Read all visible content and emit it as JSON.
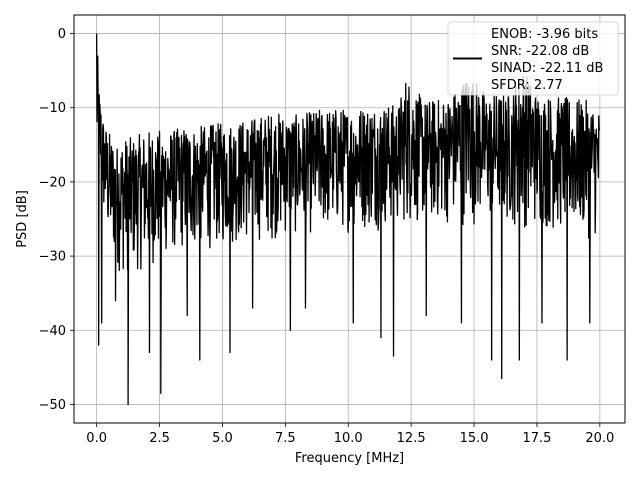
{
  "chart_data": {
    "type": "line",
    "title": "",
    "xlabel": "Frequency [MHz]",
    "ylabel": "PSD [dB]",
    "xlim": [
      -0.9,
      21.0
    ],
    "ylim": [
      -52.5,
      2.5
    ],
    "xticks": [
      0.0,
      2.5,
      5.0,
      7.5,
      10.0,
      12.5,
      15.0,
      17.5,
      20.0
    ],
    "xtick_labels": [
      "0.0",
      "2.5",
      "5.0",
      "7.5",
      "10.0",
      "12.5",
      "15.0",
      "17.5",
      "20.0"
    ],
    "yticks": [
      0,
      -10,
      -20,
      -30,
      -40,
      -50
    ],
    "ytick_labels": [
      "0",
      "−10",
      "−20",
      "−30",
      "−40",
      "−50"
    ],
    "grid": true,
    "legend_position": "top-right",
    "series": [
      {
        "name": "ENOB: -3.96 bits\nSNR: -22.08 dB\nSINAD: -22.11 dB\nSFDR: 2.77",
        "color": "#000000",
        "x_range": [
          0.0,
          20.0
        ],
        "peak": {
          "x": 0.0,
          "y": 0.0
        },
        "envelope_upper": [
          {
            "x": 0.0,
            "y": 0.0
          },
          {
            "x": 0.1,
            "y": -7
          },
          {
            "x": 0.3,
            "y": -12
          },
          {
            "x": 0.8,
            "y": -15
          },
          {
            "x": 1.0,
            "y": -14
          },
          {
            "x": 1.5,
            "y": -14
          },
          {
            "x": 2.0,
            "y": -13
          },
          {
            "x": 2.5,
            "y": -13
          },
          {
            "x": 3.0,
            "y": -13
          },
          {
            "x": 3.5,
            "y": -12.5
          },
          {
            "x": 4.0,
            "y": -12.5
          },
          {
            "x": 5.0,
            "y": -12
          },
          {
            "x": 6.0,
            "y": -11.5
          },
          {
            "x": 7.0,
            "y": -10.5
          },
          {
            "x": 8.0,
            "y": -11
          },
          {
            "x": 9.0,
            "y": -10
          },
          {
            "x": 10.0,
            "y": -10
          },
          {
            "x": 11.0,
            "y": -9.5
          },
          {
            "x": 12.0,
            "y": -9.5
          },
          {
            "x": 12.3,
            "y": -5.5
          },
          {
            "x": 13.0,
            "y": -9
          },
          {
            "x": 14.0,
            "y": -8.5
          },
          {
            "x": 14.8,
            "y": -5
          },
          {
            "x": 15.5,
            "y": -8
          },
          {
            "x": 16.5,
            "y": -8
          },
          {
            "x": 16.9,
            "y": -4
          },
          {
            "x": 17.5,
            "y": -8
          },
          {
            "x": 18.5,
            "y": -8.5
          },
          {
            "x": 19.5,
            "y": -9
          },
          {
            "x": 20.0,
            "y": -10
          }
        ],
        "envelope_lower": [
          {
            "x": 0.0,
            "y": -20
          },
          {
            "x": 0.5,
            "y": -30
          },
          {
            "x": 1.0,
            "y": -33
          },
          {
            "x": 2.0,
            "y": -32
          },
          {
            "x": 3.0,
            "y": -30
          },
          {
            "x": 5.0,
            "y": -29
          },
          {
            "x": 7.0,
            "y": -28
          },
          {
            "x": 10.0,
            "y": -27
          },
          {
            "x": 13.0,
            "y": -26
          },
          {
            "x": 16.0,
            "y": -26
          },
          {
            "x": 18.0,
            "y": -27
          },
          {
            "x": 20.0,
            "y": -28
          }
        ],
        "deep_dips": [
          {
            "x": 0.08,
            "y": -42
          },
          {
            "x": 0.2,
            "y": -39
          },
          {
            "x": 0.75,
            "y": -36
          },
          {
            "x": 1.25,
            "y": -50
          },
          {
            "x": 2.1,
            "y": -43
          },
          {
            "x": 2.55,
            "y": -48.5
          },
          {
            "x": 3.6,
            "y": -38
          },
          {
            "x": 4.1,
            "y": -44
          },
          {
            "x": 5.3,
            "y": -43
          },
          {
            "x": 6.2,
            "y": -37
          },
          {
            "x": 7.7,
            "y": -40
          },
          {
            "x": 8.3,
            "y": -37
          },
          {
            "x": 10.2,
            "y": -39
          },
          {
            "x": 11.3,
            "y": -41
          },
          {
            "x": 11.8,
            "y": -43.5
          },
          {
            "x": 13.1,
            "y": -38
          },
          {
            "x": 14.5,
            "y": -39
          },
          {
            "x": 15.7,
            "y": -44
          },
          {
            "x": 16.1,
            "y": -46.5
          },
          {
            "x": 16.8,
            "y": -44
          },
          {
            "x": 17.7,
            "y": -39
          },
          {
            "x": 18.7,
            "y": -44
          },
          {
            "x": 19.6,
            "y": -39
          }
        ]
      }
    ]
  }
}
